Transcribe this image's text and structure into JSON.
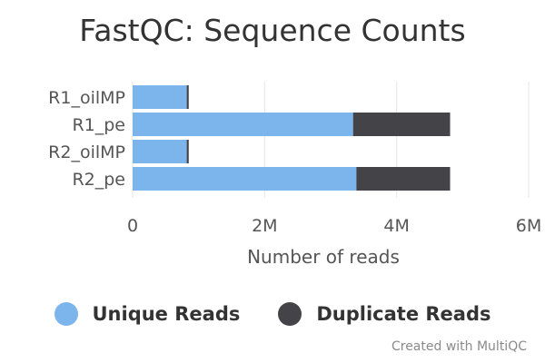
{
  "title": "FastQC: Sequence Counts",
  "credits": "Created with MultiQC",
  "chart_data": {
    "type": "bar",
    "orientation": "horizontal",
    "stacked": true,
    "title": "FastQC: Sequence Counts",
    "xlabel": "Number of reads",
    "ylabel": "",
    "categories": [
      "R1_oilMP",
      "R1_pe",
      "R2_oilMP",
      "R2_pe"
    ],
    "series": [
      {
        "name": "Unique Reads",
        "color": "#7cb5ec",
        "values": [
          820000,
          3340000,
          820000,
          3390000
        ]
      },
      {
        "name": "Duplicate Reads",
        "color": "#434348",
        "values": [
          30000,
          1470000,
          30000,
          1420000
        ]
      }
    ],
    "xlim": [
      0,
      6000000
    ],
    "ticks": [
      {
        "value": 0,
        "label": "0"
      },
      {
        "value": 2000000,
        "label": "2M"
      },
      {
        "value": 4000000,
        "label": "4M"
      },
      {
        "value": 6000000,
        "label": "6M"
      }
    ],
    "grid": true,
    "legend_position": "bottom"
  }
}
